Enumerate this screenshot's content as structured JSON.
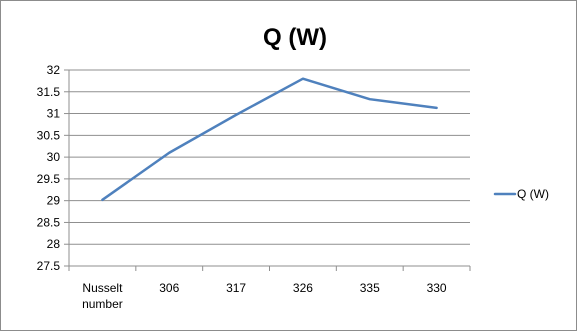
{
  "chart_data": {
    "type": "line",
    "title": "Q (W)",
    "categories": [
      "Nusselt number",
      "306",
      "317",
      "326",
      "335",
      "330"
    ],
    "series": [
      {
        "name": "Q (W)",
        "color": "#4f81bd",
        "values": [
          29.02,
          30.1,
          30.97,
          31.8,
          31.33,
          31.13
        ]
      }
    ],
    "yaxis": {
      "min": 27.5,
      "max": 32,
      "ticks": [
        "27.5",
        "28",
        "28.5",
        "29",
        "29.5",
        "30",
        "30.5",
        "31",
        "31.5",
        "32"
      ]
    },
    "grid": true,
    "legend": "right"
  }
}
